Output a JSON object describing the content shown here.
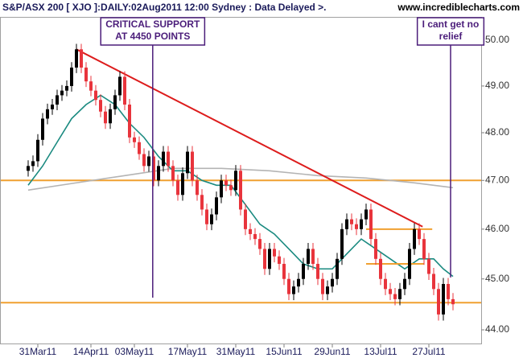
{
  "chart_data": {
    "type": "candlestick",
    "title": "S&P/ASX 200 [ XJO ]:DAILY:02Aug2011 12:00 Sydney : Data Delayed >.",
    "source": "www.incrediblecharts.com",
    "categories": [
      null,
      null,
      "31Mar11",
      null,
      null,
      null,
      null,
      null,
      null,
      null,
      null,
      null,
      null,
      "14Apr11",
      null,
      null,
      null,
      null,
      null,
      null,
      null,
      null,
      "03May11",
      null,
      null,
      null,
      null,
      null,
      null,
      null,
      null,
      null,
      null,
      "17May11",
      null,
      null,
      null,
      null,
      null,
      null,
      null,
      null,
      null,
      "31May11",
      null,
      null,
      null,
      null,
      null,
      null,
      null,
      null,
      null,
      "15Jun11",
      null,
      null,
      null,
      null,
      null,
      null,
      null,
      null,
      null,
      "29Jun11",
      null,
      null,
      null,
      null,
      null,
      null,
      null,
      null,
      null,
      "13Jul11",
      null,
      null,
      null,
      null,
      null,
      null,
      null,
      null,
      null,
      "27Jul11",
      null,
      null,
      null,
      null,
      null
    ],
    "open": [
      47.2,
      47.3,
      47.4,
      47.85,
      48.3,
      48.5,
      48.6,
      48.8,
      48.9,
      49.0,
      49.4,
      49.8,
      49.4,
      49.1,
      48.9,
      48.7,
      48.45,
      48.2,
      48.5,
      48.8,
      49.2,
      48.6,
      47.9,
      47.8,
      47.55,
      47.3,
      47.5,
      47.0,
      47.3,
      47.6,
      47.3,
      47.0,
      46.7,
      47.15,
      47.6,
      47.0,
      46.7,
      46.4,
      46.1,
      46.3,
      46.65,
      47.0,
      46.9,
      46.8,
      47.2,
      46.4,
      46.0,
      45.9,
      45.8,
      45.6,
      45.2,
      45.6,
      45.45,
      45.3,
      45.0,
      44.7,
      44.85,
      45.0,
      45.3,
      45.6,
      45.3,
      45.0,
      44.7,
      44.85,
      45.0,
      45.4,
      46.0,
      46.2,
      46.1,
      46.0,
      46.2,
      46.4,
      45.8,
      45.4,
      45.0,
      44.8,
      44.7,
      44.6,
      44.8,
      45.0,
      45.6,
      46.0,
      45.8,
      45.4,
      45.1,
      44.8,
      44.3,
      44.9,
      44.6
    ],
    "high": [
      47.42,
      47.52,
      47.97,
      48.42,
      48.62,
      48.72,
      48.92,
      49.02,
      49.12,
      49.52,
      49.92,
      49.92,
      49.52,
      49.22,
      49.02,
      48.82,
      48.57,
      48.62,
      48.92,
      49.32,
      49.32,
      48.72,
      48.02,
      47.92,
      47.67,
      47.62,
      47.62,
      47.42,
      47.72,
      47.72,
      47.42,
      47.12,
      47.27,
      47.72,
      47.72,
      47.12,
      46.82,
      46.52,
      46.42,
      46.77,
      47.12,
      47.12,
      47.02,
      47.32,
      47.32,
      46.52,
      46.12,
      46.02,
      45.92,
      45.72,
      45.72,
      45.72,
      45.57,
      45.42,
      45.12,
      44.97,
      45.12,
      45.42,
      45.72,
      45.72,
      45.42,
      45.12,
      44.97,
      45.12,
      45.52,
      46.12,
      46.32,
      46.32,
      46.22,
      46.32,
      46.52,
      46.52,
      45.92,
      45.52,
      45.12,
      44.92,
      44.82,
      44.92,
      45.12,
      45.72,
      46.12,
      46.12,
      45.92,
      45.52,
      45.22,
      44.92,
      45.02,
      45.02,
      44.72
    ],
    "low": [
      47.08,
      47.18,
      47.28,
      47.73,
      48.18,
      48.38,
      48.48,
      48.68,
      48.78,
      48.88,
      49.28,
      49.28,
      48.98,
      48.78,
      48.58,
      48.33,
      48.08,
      48.08,
      48.38,
      48.68,
      48.48,
      47.78,
      47.68,
      47.43,
      47.18,
      47.18,
      46.88,
      46.88,
      47.18,
      47.18,
      46.88,
      46.58,
      46.58,
      47.03,
      46.88,
      46.58,
      46.28,
      45.98,
      45.98,
      46.18,
      46.53,
      46.78,
      46.68,
      46.68,
      46.28,
      45.88,
      45.78,
      45.68,
      45.48,
      45.08,
      45.08,
      45.33,
      45.18,
      44.88,
      44.58,
      44.58,
      44.73,
      44.88,
      45.18,
      45.18,
      44.88,
      44.58,
      44.58,
      44.73,
      44.88,
      45.28,
      45.88,
      45.98,
      45.88,
      45.88,
      46.08,
      45.68,
      45.28,
      44.88,
      44.68,
      44.58,
      44.48,
      44.48,
      44.68,
      44.88,
      45.48,
      45.68,
      45.28,
      44.98,
      44.68,
      44.18,
      44.18,
      44.48,
      44.38
    ],
    "close": [
      47.3,
      47.4,
      47.85,
      48.3,
      48.5,
      48.6,
      48.8,
      48.9,
      49.0,
      49.4,
      49.8,
      49.4,
      49.1,
      48.9,
      48.7,
      48.45,
      48.2,
      48.5,
      48.8,
      49.2,
      48.6,
      47.9,
      47.8,
      47.55,
      47.3,
      47.5,
      47.0,
      47.3,
      47.6,
      47.3,
      47.0,
      46.7,
      47.15,
      47.6,
      47.0,
      46.7,
      46.4,
      46.1,
      46.3,
      46.65,
      47.0,
      46.9,
      46.8,
      47.2,
      46.4,
      46.0,
      45.9,
      45.8,
      45.6,
      45.2,
      45.6,
      45.45,
      45.3,
      45.0,
      44.7,
      44.85,
      45.0,
      45.3,
      45.6,
      45.3,
      45.0,
      44.7,
      44.85,
      45.0,
      45.4,
      46.0,
      46.2,
      46.1,
      46.0,
      46.2,
      46.4,
      45.8,
      45.4,
      45.0,
      44.8,
      44.7,
      44.6,
      44.8,
      45.0,
      45.6,
      46.0,
      45.8,
      45.4,
      45.1,
      44.8,
      44.3,
      44.9,
      44.6,
      44.5
    ],
    "up_color": "#000000",
    "down_color": "#e8343c",
    "ylim": [
      43.72,
      50.5
    ],
    "log_scale": true,
    "yticks": [
      {
        "value": 44,
        "label": "44.00"
      },
      {
        "value": 45,
        "label": "45.00"
      },
      {
        "value": 46,
        "label": "46.00"
      },
      {
        "value": 47,
        "label": "47.00"
      },
      {
        "value": 48,
        "label": "48.00"
      },
      {
        "value": 49,
        "label": "49.00"
      },
      {
        "value": 50,
        "label": "50.00"
      }
    ],
    "overlays": [
      {
        "color": "#b4b4b4",
        "x": [
          0,
          10,
          20,
          30,
          40,
          50,
          60,
          70,
          80,
          88
        ],
        "values": [
          46.8,
          46.95,
          47.1,
          47.25,
          47.25,
          47.2,
          47.1,
          47.05,
          46.95,
          46.85
        ]
      },
      {
        "color": "#1a8a80",
        "x": [
          0,
          3,
          6,
          9,
          12,
          15,
          18,
          21,
          24,
          27,
          30,
          33,
          36,
          39,
          42,
          45,
          48,
          51,
          54,
          57,
          60,
          63,
          66,
          69,
          72,
          75,
          78,
          81,
          84,
          86,
          88
        ],
        "values": [
          46.9,
          47.3,
          47.8,
          48.3,
          48.6,
          48.8,
          48.6,
          48.2,
          47.9,
          47.5,
          47.2,
          47.2,
          47.0,
          46.9,
          46.9,
          46.5,
          46.1,
          45.9,
          45.6,
          45.3,
          45.2,
          45.2,
          45.5,
          45.8,
          45.6,
          45.4,
          45.2,
          45.4,
          45.4,
          45.2,
          45.05
        ]
      }
    ],
    "levels": [
      {
        "value": 47.0,
        "color": "#f0a030"
      },
      {
        "value": 44.53,
        "color": "#f0a030"
      }
    ],
    "segments": [
      {
        "color": "#f0a030",
        "x": [
          70,
          83.7
        ],
        "values": [
          46.0,
          46.0
        ]
      },
      {
        "color": "#f0a030",
        "x": [
          70,
          82
        ],
        "values": [
          45.3,
          45.3
        ]
      },
      {
        "color": "#dd1c1c",
        "x": [
          10,
          81.7
        ],
        "values": [
          49.8,
          46.05
        ]
      }
    ],
    "annotations": [
      {
        "lines": [
          "CRITICAL SUPPORT",
          "AT 4450 POINTS"
        ],
        "x": 25.8,
        "points_to": 44.63,
        "color": "#4b1d7a"
      },
      {
        "lines": [
          "I cant get no",
          "relief"
        ],
        "x": 87.5,
        "points_to": 45.03,
        "color": "#4b1d7a"
      }
    ]
  }
}
